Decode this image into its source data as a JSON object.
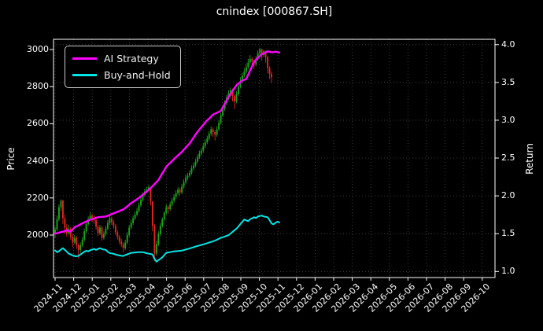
{
  "title": "cnindex [000867.SH]",
  "legend": [
    {
      "label": "AI Strategy",
      "color": "#ff00ff"
    },
    {
      "label": "Buy-and-Hold",
      "color": "#00e5e5"
    }
  ],
  "axes": {
    "left_label": "Price",
    "right_label": "Return"
  },
  "chart_data": {
    "type": "candlestick+line",
    "title": "cnindex [000867.SH]",
    "grid": true,
    "legend_position": "upper left",
    "x_axis": {
      "tick_labels": [
        "2024-11",
        "2024-12",
        "2025-01",
        "2025-02",
        "2025-03",
        "2025-04",
        "2025-05",
        "2025-06",
        "2025-07",
        "2025-08",
        "2025-09",
        "2025-10",
        "2025-11",
        "2025-12",
        "2026-01",
        "2026-02",
        "2026-03",
        "2026-04",
        "2026-05",
        "2026-06",
        "2026-07",
        "2026-08",
        "2026-09",
        "2026-10"
      ]
    },
    "y_left": {
      "label": "Price",
      "ticks": [
        2000,
        2200,
        2400,
        2600,
        2800,
        3000
      ],
      "range": [
        1771,
        3055
      ]
    },
    "y_right": {
      "label": "Return",
      "ticks": [
        1.0,
        1.5,
        2.0,
        2.5,
        3.0,
        3.5,
        4.0
      ],
      "range": [
        0.92,
        4.07
      ]
    },
    "colors": {
      "up": "#1aa51a",
      "down": "#e32424",
      "background": "#000000",
      "foreground": "#ffffff",
      "grid": "#8a8a8a",
      "ai": "#ff00ff",
      "bh": "#00e5e5"
    },
    "candle_x_months": {
      "start": 0,
      "step": 0.105
    },
    "candles_ohlc": [
      [
        2005,
        2045,
        1985,
        2030
      ],
      [
        2030,
        2105,
        2020,
        2085
      ],
      [
        2085,
        2165,
        2075,
        2150
      ],
      [
        2150,
        2192,
        2130,
        2185
      ],
      [
        2185,
        2190,
        2060,
        2090
      ],
      [
        2090,
        2110,
        2005,
        2040
      ],
      [
        2040,
        2060,
        1990,
        2010
      ],
      [
        2010,
        2055,
        2000,
        2035
      ],
      [
        2035,
        2045,
        1975,
        1990
      ],
      [
        1990,
        2005,
        1935,
        1960
      ],
      [
        1960,
        2000,
        1950,
        1985
      ],
      [
        1985,
        1995,
        1925,
        1945
      ],
      [
        1945,
        1955,
        1875,
        1920
      ],
      [
        1920,
        1960,
        1905,
        1945
      ],
      [
        1945,
        1990,
        1935,
        1975
      ],
      [
        1975,
        2035,
        1965,
        2020
      ],
      [
        2020,
        2075,
        2010,
        2060
      ],
      [
        2060,
        2100,
        2050,
        2085
      ],
      [
        2085,
        2125,
        2075,
        2105
      ],
      [
        2105,
        2115,
        2070,
        2090
      ],
      [
        2090,
        2105,
        2060,
        2080
      ],
      [
        2080,
        2090,
        2030,
        2045
      ],
      [
        2045,
        2055,
        1995,
        2010
      ],
      [
        2010,
        2055,
        2000,
        2040
      ],
      [
        2040,
        2050,
        1970,
        1985
      ],
      [
        1985,
        2020,
        1975,
        2005
      ],
      [
        2005,
        2050,
        1995,
        2035
      ],
      [
        2035,
        2080,
        2025,
        2065
      ],
      [
        2065,
        2105,
        2055,
        2090
      ],
      [
        2090,
        2100,
        2055,
        2070
      ],
      [
        2070,
        2080,
        2035,
        2050
      ],
      [
        2050,
        2060,
        2000,
        2015
      ],
      [
        2015,
        2025,
        1975,
        1990
      ],
      [
        1990,
        2000,
        1950,
        1965
      ],
      [
        1965,
        1980,
        1935,
        1950
      ],
      [
        1950,
        1960,
        1905,
        1930
      ],
      [
        1930,
        1975,
        1920,
        1960
      ],
      [
        1960,
        2015,
        1950,
        2000
      ],
      [
        2000,
        2055,
        1990,
        2040
      ],
      [
        2040,
        2080,
        2030,
        2065
      ],
      [
        2065,
        2105,
        2055,
        2090
      ],
      [
        2090,
        2125,
        2080,
        2110
      ],
      [
        2110,
        2145,
        2100,
        2130
      ],
      [
        2130,
        2175,
        2120,
        2160
      ],
      [
        2160,
        2205,
        2150,
        2190
      ],
      [
        2190,
        2230,
        2180,
        2215
      ],
      [
        2215,
        2250,
        2205,
        2235
      ],
      [
        2235,
        2260,
        2225,
        2245
      ],
      [
        2245,
        2270,
        2235,
        2255
      ],
      [
        2255,
        2260,
        2160,
        2180
      ],
      [
        2180,
        2185,
        2020,
        2050
      ],
      [
        2050,
        2060,
        1860,
        1900
      ],
      [
        1900,
        1970,
        1890,
        1950
      ],
      [
        1950,
        2020,
        1940,
        2005
      ],
      [
        2005,
        2065,
        1995,
        2050
      ],
      [
        2050,
        2095,
        2040,
        2085
      ],
      [
        2085,
        2130,
        2075,
        2120
      ],
      [
        2120,
        2165,
        2110,
        2150
      ],
      [
        2150,
        2160,
        2115,
        2140
      ],
      [
        2140,
        2180,
        2130,
        2165
      ],
      [
        2165,
        2200,
        2155,
        2185
      ],
      [
        2185,
        2220,
        2175,
        2205
      ],
      [
        2205,
        2240,
        2195,
        2225
      ],
      [
        2225,
        2260,
        2215,
        2245
      ],
      [
        2245,
        2255,
        2210,
        2230
      ],
      [
        2230,
        2275,
        2220,
        2260
      ],
      [
        2260,
        2300,
        2250,
        2285
      ],
      [
        2285,
        2325,
        2275,
        2310
      ],
      [
        2310,
        2335,
        2295,
        2320
      ],
      [
        2320,
        2350,
        2310,
        2335
      ],
      [
        2335,
        2375,
        2325,
        2360
      ],
      [
        2360,
        2390,
        2350,
        2375
      ],
      [
        2375,
        2410,
        2365,
        2395
      ],
      [
        2395,
        2435,
        2385,
        2420
      ],
      [
        2420,
        2455,
        2410,
        2440
      ],
      [
        2440,
        2470,
        2430,
        2455
      ],
      [
        2455,
        2495,
        2445,
        2480
      ],
      [
        2480,
        2515,
        2470,
        2500
      ],
      [
        2500,
        2535,
        2490,
        2520
      ],
      [
        2520,
        2560,
        2510,
        2545
      ],
      [
        2545,
        2585,
        2535,
        2570
      ],
      [
        2570,
        2580,
        2530,
        2555
      ],
      [
        2555,
        2565,
        2510,
        2540
      ],
      [
        2540,
        2585,
        2530,
        2570
      ],
      [
        2570,
        2620,
        2560,
        2605
      ],
      [
        2605,
        2660,
        2595,
        2645
      ],
      [
        2645,
        2695,
        2635,
        2680
      ],
      [
        2680,
        2725,
        2670,
        2710
      ],
      [
        2710,
        2755,
        2700,
        2740
      ],
      [
        2740,
        2780,
        2730,
        2765
      ],
      [
        2765,
        2795,
        2745,
        2780
      ],
      [
        2780,
        2790,
        2720,
        2750
      ],
      [
        2750,
        2760,
        2680,
        2720
      ],
      [
        2720,
        2775,
        2710,
        2760
      ],
      [
        2760,
        2815,
        2750,
        2800
      ],
      [
        2800,
        2850,
        2790,
        2830
      ],
      [
        2830,
        2875,
        2820,
        2860
      ],
      [
        2860,
        2900,
        2850,
        2880
      ],
      [
        2880,
        2925,
        2870,
        2905
      ],
      [
        2905,
        2950,
        2895,
        2930
      ],
      [
        2930,
        2970,
        2920,
        2950
      ],
      [
        2950,
        2960,
        2910,
        2935
      ],
      [
        2935,
        2945,
        2895,
        2920
      ],
      [
        2920,
        2965,
        2910,
        2950
      ],
      [
        2950,
        2995,
        2940,
        2980
      ],
      [
        2980,
        3010,
        2970,
        3000
      ],
      [
        3000,
        3005,
        2940,
        2970
      ],
      [
        2970,
        3000,
        2960,
        2990
      ],
      [
        2990,
        2995,
        2930,
        2960
      ],
      [
        2960,
        2965,
        2870,
        2900
      ],
      [
        2900,
        2910,
        2840,
        2870
      ],
      [
        2870,
        2880,
        2820,
        2850
      ]
    ],
    "series": [
      {
        "name": "AI Strategy",
        "color": "#ff00ff",
        "axis": "price",
        "x_months": {
          "start": 0,
          "step": 0.105
        },
        "values": [
          2008,
          2010,
          2013,
          2016,
          2018,
          2021,
          2025,
          2022,
          2018,
          2030,
          2042,
          2047,
          2052,
          2058,
          2063,
          2068,
          2073,
          2078,
          2083,
          2086,
          2089,
          2093,
          2096,
          2097,
          2098,
          2099,
          2100,
          2104,
          2108,
          2113,
          2117,
          2121,
          2125,
          2130,
          2134,
          2138,
          2146,
          2155,
          2163,
          2172,
          2179,
          2186,
          2193,
          2200,
          2209,
          2217,
          2226,
          2234,
          2244,
          2254,
          2264,
          2275,
          2286,
          2297,
          2315,
          2333,
          2350,
          2368,
          2379,
          2389,
          2400,
          2410,
          2420,
          2429,
          2439,
          2448,
          2460,
          2471,
          2483,
          2494,
          2510,
          2525,
          2541,
          2556,
          2569,
          2582,
          2594,
          2607,
          2618,
          2628,
          2639,
          2649,
          2654,
          2659,
          2664,
          2669,
          2688,
          2707,
          2726,
          2745,
          2761,
          2777,
          2792,
          2808,
          2816,
          2824,
          2833,
          2837,
          2841,
          2864,
          2887,
          2910,
          2933,
          2944,
          2954,
          2965,
          2975,
          2980,
          2985,
          2990,
          2988,
          2985,
          2986,
          2988,
          2986,
          2984
        ]
      },
      {
        "name": "Buy-and-Hold",
        "color": "#00e5e5",
        "axis": "price",
        "x_months": {
          "start": 0,
          "step": 0.105
        },
        "values": [
          1917,
          1908,
          1913,
          1922,
          1929,
          1920,
          1910,
          1900,
          1895,
          1890,
          1887,
          1885,
          1888,
          1895,
          1903,
          1910,
          1915,
          1912,
          1918,
          1922,
          1925,
          1920,
          1925,
          1929,
          1925,
          1922,
          1920,
          1910,
          1903,
          1901,
          1899,
          1895,
          1892,
          1890,
          1888,
          1887,
          1892,
          1896,
          1900,
          1904,
          1905,
          1906,
          1907,
          1908,
          1908,
          1908,
          1905,
          1902,
          1900,
          1898,
          1895,
          1870,
          1857,
          1865,
          1872,
          1880,
          1892,
          1904,
          1906,
          1908,
          1910,
          1912,
          1913,
          1914,
          1915,
          1916,
          1919,
          1922,
          1925,
          1928,
          1931,
          1934,
          1938,
          1941,
          1944,
          1947,
          1950,
          1953,
          1956,
          1960,
          1963,
          1966,
          1970,
          1975,
          1980,
          1985,
          1988,
          1992,
          1996,
          2000,
          2008,
          2017,
          2026,
          2034,
          2046,
          2059,
          2071,
          2084,
          2079,
          2075,
          2085,
          2090,
          2096,
          2092,
          2100,
          2103,
          2105,
          2100,
          2098,
          2096,
          2080,
          2062,
          2058,
          2066,
          2072,
          2068
        ]
      }
    ]
  }
}
